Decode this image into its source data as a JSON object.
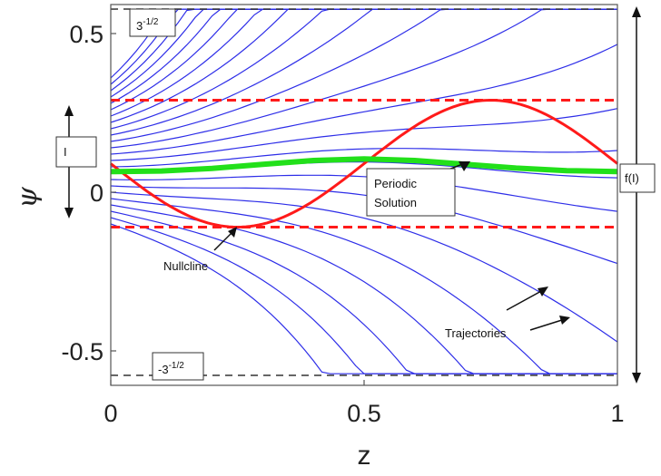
{
  "chart_data": {
    "type": "line",
    "title": "",
    "xlabel": "z",
    "ylabel": "ψ",
    "xlim": [
      0,
      1
    ],
    "ylim": [
      -0.6,
      0.6
    ],
    "xticks": [
      {
        "value": 0,
        "label": "0"
      },
      {
        "value": 0.5,
        "label": "0.5"
      },
      {
        "value": 1,
        "label": "1"
      }
    ],
    "yticks": [
      {
        "value": 0.5,
        "label": "0.5"
      },
      {
        "value": 0,
        "label": "0"
      },
      {
        "value": -0.5,
        "label": "-0.5"
      }
    ],
    "grid": false,
    "bounds": {
      "upper": 0.577,
      "lower": -0.577,
      "upper_label": "3",
      "upper_sup": "-1/2",
      "lower_label": "-3",
      "lower_sup": "-1/2"
    },
    "critical_levels": [
      0.29,
      -0.11
    ],
    "nullcline": {
      "center": 0.09,
      "amplitude": 0.2,
      "phase_min_z": 0.25
    },
    "periodic_solution": {
      "x": [
        0,
        0.1,
        0.2,
        0.3,
        0.4,
        0.5,
        0.6,
        0.7,
        0.8,
        0.9,
        1.0
      ],
      "y": [
        0.065,
        0.067,
        0.075,
        0.088,
        0.1,
        0.105,
        0.1,
        0.088,
        0.076,
        0.068,
        0.065
      ]
    },
    "trajectory_starts": [
      -0.1,
      -0.08,
      -0.06,
      -0.04,
      -0.02,
      0,
      0.02,
      0.04,
      0.06,
      0.08,
      0.1,
      0.12,
      0.14,
      0.16,
      0.18,
      0.2,
      0.22,
      0.24,
      0.26,
      0.28,
      0.3,
      0.32,
      0.34,
      0.36
    ],
    "interval_marker": {
      "label": "I",
      "y_top": 0.28,
      "y_bottom": -0.1
    },
    "f_marker": {
      "label": "f(I)",
      "y_top": 0.58,
      "y_bottom": -0.58
    },
    "annotations": [
      {
        "id": "nullcline",
        "text": "Nullcline"
      },
      {
        "id": "periodic",
        "lines": [
          "Periodic",
          "Solution"
        ]
      },
      {
        "id": "trajectories",
        "text": "Trajectories"
      }
    ]
  }
}
